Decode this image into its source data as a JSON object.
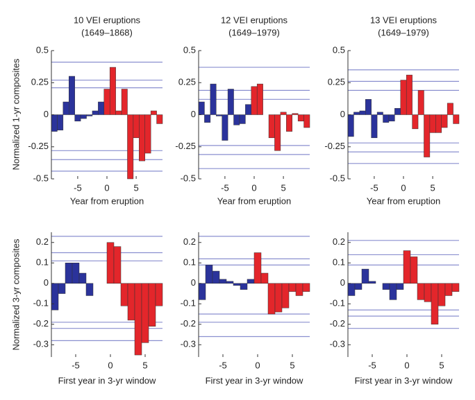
{
  "chart_data": [
    {
      "type": "bar",
      "title": "10 VEI eruptions",
      "subtitle": "(1649–1868)",
      "ylabel": "Normalized 1-yr composites",
      "xlabel": "Year from eruption",
      "x": [
        -9,
        -8,
        -7,
        -6,
        -5,
        -4,
        -3,
        -2,
        -1,
        0,
        1,
        2,
        3,
        4,
        5,
        6,
        7,
        8,
        9
      ],
      "values": [
        -0.13,
        -0.12,
        0.1,
        0.3,
        -0.05,
        -0.03,
        -0.01,
        0.03,
        0.1,
        0.2,
        0.37,
        0.03,
        0.2,
        -0.5,
        -0.18,
        -0.36,
        -0.3,
        0.03,
        -0.07
      ],
      "xlim": [
        -9.5,
        9.5
      ],
      "ylim": [
        -0.5,
        0.5
      ],
      "xticks": [
        -5,
        0,
        5
      ],
      "yticks": [
        0.5,
        0.25,
        0,
        -0.25,
        -0.5
      ],
      "reference_lines": [
        0.41,
        0.27,
        0.21,
        -0.28,
        -0.35,
        -0.44
      ],
      "reference_color": "#8a8fcf",
      "colors": {
        "before": "#2b339b",
        "after": "#e3262b"
      }
    },
    {
      "type": "bar",
      "title": "12 VEI eruptions",
      "subtitle": "(1649–1979)",
      "xlabel": "Year from eruption",
      "x": [
        -9,
        -8,
        -7,
        -6,
        -5,
        -4,
        -3,
        -2,
        -1,
        0,
        1,
        2,
        3,
        4,
        5,
        6,
        7,
        8,
        9
      ],
      "values": [
        0.1,
        -0.06,
        0.24,
        -0.01,
        -0.2,
        0.2,
        -0.08,
        -0.07,
        0.08,
        0.22,
        0.24,
        0,
        -0.18,
        -0.28,
        0.02,
        -0.13,
        0.01,
        -0.05,
        -0.1
      ],
      "xlim": [
        -9.5,
        9.5
      ],
      "ylim": [
        -0.5,
        0.5
      ],
      "xticks": [
        -5,
        0,
        5
      ],
      "yticks": [
        0.5,
        0.25,
        0,
        -0.25,
        -0.5
      ],
      "reference_lines": [
        0.37,
        0.19,
        0.12,
        -0.24,
        -0.31,
        -0.42
      ],
      "reference_color": "#8a8fcf",
      "colors": {
        "before": "#2b339b",
        "after": "#e3262b"
      }
    },
    {
      "type": "bar",
      "title": "13 VEI eruptions",
      "subtitle": "(1649–1979)",
      "xlabel": "Year from eruption",
      "x": [
        -9,
        -8,
        -7,
        -6,
        -5,
        -4,
        -3,
        -2,
        -1,
        0,
        1,
        2,
        3,
        4,
        5,
        6,
        7,
        8,
        9
      ],
      "values": [
        -0.17,
        0.02,
        0.03,
        0.12,
        -0.18,
        0.02,
        -0.06,
        -0.05,
        0.05,
        0.27,
        0.31,
        -0.11,
        0.19,
        -0.33,
        -0.14,
        -0.14,
        -0.1,
        0.09,
        -0.07
      ],
      "xlim": [
        -9.5,
        9.5
      ],
      "ylim": [
        -0.5,
        0.5
      ],
      "xticks": [
        -5,
        0,
        5
      ],
      "yticks": [
        0.5,
        0.25,
        0,
        -0.25,
        -0.5
      ],
      "reference_lines": [
        0.35,
        0.26,
        0.19,
        -0.22,
        -0.29,
        -0.38
      ],
      "reference_color": "#8a8fcf",
      "colors": {
        "before": "#2b339b",
        "after": "#e3262b"
      }
    },
    {
      "type": "bar",
      "ylabel": "Normalized 3-yr composites",
      "xlabel": "First year in 3-yr window",
      "x": [
        -8,
        -7,
        -6,
        -5,
        -4,
        -3,
        -2,
        -1,
        0,
        1,
        2,
        3,
        4,
        5,
        6,
        7
      ],
      "values": [
        -0.13,
        -0.05,
        0.1,
        0.1,
        0.05,
        -0.06,
        0,
        0,
        0.2,
        0.18,
        -0.11,
        -0.18,
        -0.35,
        -0.29,
        -0.21,
        -0.11
      ],
      "xlim": [
        -8.5,
        7.5
      ],
      "ylim": [
        -0.36,
        0.25
      ],
      "xticks": [
        -5,
        0,
        5
      ],
      "yticks": [
        0.2,
        0.1,
        0,
        -0.1,
        -0.2,
        -0.3
      ],
      "reference_lines": [
        0.23,
        0.15,
        0.11,
        -0.19,
        -0.22,
        -0.28
      ],
      "reference_color": "#8a8fcf",
      "colors": {
        "before": "#2b339b",
        "after": "#e3262b"
      }
    },
    {
      "type": "bar",
      "xlabel": "First year in 3-yr window",
      "x": [
        -8,
        -7,
        -6,
        -5,
        -4,
        -3,
        -2,
        -1,
        0,
        1,
        2,
        3,
        4,
        5,
        6,
        7
      ],
      "values": [
        -0.08,
        0.09,
        0.06,
        0.02,
        0.01,
        -0.01,
        -0.03,
        0.02,
        0.15,
        0.05,
        -0.15,
        -0.14,
        -0.12,
        -0.04,
        -0.06,
        -0.04
      ],
      "xlim": [
        -8.5,
        7.5
      ],
      "ylim": [
        -0.36,
        0.25
      ],
      "xticks": [
        -5,
        0,
        5
      ],
      "yticks": [
        0.2,
        0.1,
        0,
        -0.1,
        -0.2,
        -0.3
      ],
      "reference_lines": [
        0.23,
        0.12,
        0.09,
        -0.15,
        -0.19,
        -0.26
      ],
      "reference_color": "#8a8fcf",
      "colors": {
        "before": "#2b339b",
        "after": "#e3262b"
      }
    },
    {
      "type": "bar",
      "xlabel": "First year in 3-yr window",
      "x": [
        -8,
        -7,
        -6,
        -5,
        -4,
        -3,
        -2,
        -1,
        0,
        1,
        2,
        3,
        4,
        5,
        6,
        7
      ],
      "values": [
        -0.06,
        -0.03,
        0.07,
        0.01,
        0,
        -0.03,
        -0.08,
        -0.03,
        0.16,
        0.13,
        -0.08,
        -0.09,
        -0.2,
        -0.11,
        -0.06,
        -0.04
      ],
      "xlim": [
        -8.5,
        7.5
      ],
      "ylim": [
        -0.36,
        0.25
      ],
      "xticks": [
        -5,
        0,
        5
      ],
      "yticks": [
        0.2,
        0.1,
        0,
        -0.1,
        -0.2,
        -0.3
      ],
      "reference_lines": [
        0.21,
        0.14,
        0.09,
        -0.13,
        -0.16,
        -0.22
      ],
      "reference_color": "#8a8fcf",
      "colors": {
        "before": "#2b339b",
        "after": "#e3262b"
      }
    }
  ]
}
